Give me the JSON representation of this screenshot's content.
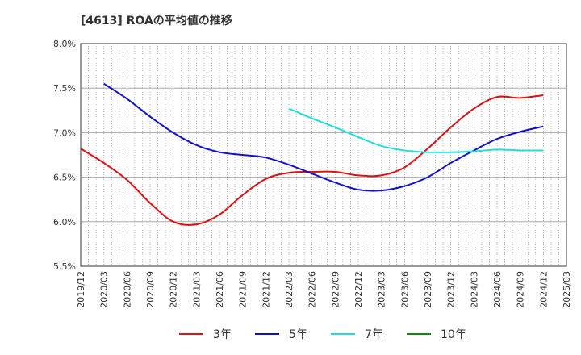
{
  "chart_data": {
    "type": "line",
    "title": "[4613]  ROAの平均値の推移",
    "xlabel": "",
    "ylabel": "",
    "ylim": [
      5.5,
      8.0
    ],
    "yticks": [
      "5.5%",
      "6.0%",
      "6.5%",
      "7.0%",
      "7.5%",
      "8.0%"
    ],
    "ytick_values": [
      5.5,
      6.0,
      6.5,
      7.0,
      7.5,
      8.0
    ],
    "x_labels": [
      "2019/12",
      "2020/03",
      "2020/06",
      "2020/09",
      "2020/12",
      "2021/03",
      "2021/06",
      "2021/09",
      "2021/12",
      "2022/03",
      "2022/06",
      "2022/09",
      "2022/12",
      "2023/03",
      "2023/06",
      "2023/09",
      "2023/12",
      "2024/03",
      "2024/06",
      "2024/09",
      "2024/12",
      "2025/03"
    ],
    "grid": true,
    "legend_position": "bottom",
    "series": [
      {
        "name": "3年",
        "color": "#dd1111",
        "values": [
          6.82,
          6.66,
          6.47,
          6.21,
          6.0,
          5.97,
          6.08,
          6.3,
          6.48,
          6.55,
          6.56,
          6.56,
          6.52,
          6.52,
          6.61,
          6.82,
          7.06,
          7.27,
          7.4,
          7.39,
          7.42,
          null
        ]
      },
      {
        "name": "5年",
        "color": "#1111cc",
        "values": [
          null,
          7.55,
          7.38,
          7.18,
          7.0,
          6.86,
          6.78,
          6.75,
          6.72,
          6.64,
          6.54,
          6.44,
          6.36,
          6.35,
          6.4,
          6.5,
          6.66,
          6.8,
          6.93,
          7.01,
          7.07,
          null
        ]
      },
      {
        "name": "7年",
        "color": "#22dddd",
        "values": [
          null,
          null,
          null,
          null,
          null,
          null,
          null,
          null,
          null,
          7.27,
          7.16,
          7.06,
          6.95,
          6.85,
          6.8,
          6.78,
          6.78,
          6.79,
          6.81,
          6.8,
          6.8,
          null
        ]
      },
      {
        "name": "10年",
        "color": "#118811",
        "values": [
          null,
          null,
          null,
          null,
          null,
          null,
          null,
          null,
          null,
          null,
          null,
          null,
          null,
          null,
          null,
          null,
          null,
          null,
          null,
          null,
          null,
          null
        ]
      }
    ]
  }
}
